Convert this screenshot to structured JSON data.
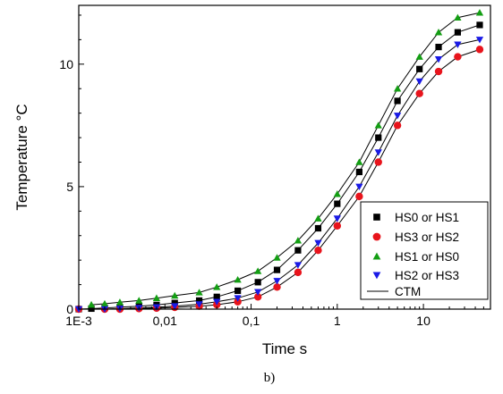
{
  "chart_data": {
    "type": "scatter",
    "title": "",
    "xlabel": "Time s",
    "ylabel": "Temperature °C",
    "caption": "b)",
    "x_scale": "log",
    "xlim": [
      0.001,
      60
    ],
    "ylim": [
      0,
      12.4
    ],
    "x_ticks": [
      0.001,
      0.01,
      0.1,
      1,
      10
    ],
    "x_tick_labels": [
      "1E-3",
      "0,01",
      "0,1",
      "1",
      "10"
    ],
    "y_ticks": [
      0,
      5,
      10
    ],
    "y_tick_labels": [
      "0",
      "5",
      "10"
    ],
    "grid": false,
    "legend_position": "bottom-right",
    "legend_line_label": "CTM",
    "series": [
      {
        "name": "HS0 or HS1",
        "marker": "square",
        "color": "#000000",
        "x": [
          0.001,
          0.0014,
          0.002,
          0.003,
          0.005,
          0.008,
          0.013,
          0.025,
          0.04,
          0.07,
          0.12,
          0.2,
          0.35,
          0.6,
          1.0,
          1.8,
          3.0,
          5.0,
          9.0,
          15.0,
          25.0,
          45.0
        ],
        "y": [
          0.0,
          0.02,
          0.05,
          0.08,
          0.12,
          0.17,
          0.25,
          0.35,
          0.5,
          0.75,
          1.1,
          1.6,
          2.4,
          3.3,
          4.3,
          5.6,
          7.0,
          8.5,
          9.8,
          10.7,
          11.3,
          11.6
        ]
      },
      {
        "name": "HS3 or HS2",
        "marker": "circle",
        "color": "#e8141c",
        "x": [
          0.001,
          0.002,
          0.003,
          0.005,
          0.008,
          0.013,
          0.025,
          0.04,
          0.07,
          0.12,
          0.2,
          0.35,
          0.6,
          1.0,
          1.8,
          3.0,
          5.0,
          9.0,
          15.0,
          25.0,
          45.0
        ],
        "y": [
          0.0,
          0.0,
          0.0,
          0.02,
          0.04,
          0.07,
          0.12,
          0.18,
          0.3,
          0.5,
          0.9,
          1.5,
          2.4,
          3.4,
          4.6,
          6.0,
          7.5,
          8.8,
          9.7,
          10.3,
          10.6
        ]
      },
      {
        "name": "HS1 or HS0",
        "marker": "triangle-up",
        "color": "#139e13",
        "x": [
          0.0014,
          0.002,
          0.003,
          0.005,
          0.008,
          0.013,
          0.025,
          0.04,
          0.07,
          0.12,
          0.2,
          0.35,
          0.6,
          1.0,
          1.8,
          3.0,
          5.0,
          9.0,
          15.0,
          25.0,
          45.0
        ],
        "y": [
          0.18,
          0.22,
          0.28,
          0.35,
          0.45,
          0.55,
          0.68,
          0.9,
          1.2,
          1.55,
          2.1,
          2.8,
          3.7,
          4.7,
          6.0,
          7.5,
          9.0,
          10.3,
          11.3,
          11.9,
          12.1
        ]
      },
      {
        "name": "HS2 or HS3",
        "marker": "triangle-down",
        "color": "#1a1ae6",
        "x": [
          0.001,
          0.002,
          0.003,
          0.005,
          0.008,
          0.013,
          0.025,
          0.04,
          0.07,
          0.12,
          0.2,
          0.35,
          0.6,
          1.0,
          1.8,
          3.0,
          5.0,
          9.0,
          15.0,
          25.0,
          45.0
        ],
        "y": [
          0.0,
          0.0,
          0.02,
          0.05,
          0.08,
          0.12,
          0.2,
          0.3,
          0.45,
          0.7,
          1.15,
          1.8,
          2.7,
          3.7,
          5.0,
          6.4,
          7.9,
          9.3,
          10.2,
          10.8,
          11.0
        ]
      }
    ]
  }
}
